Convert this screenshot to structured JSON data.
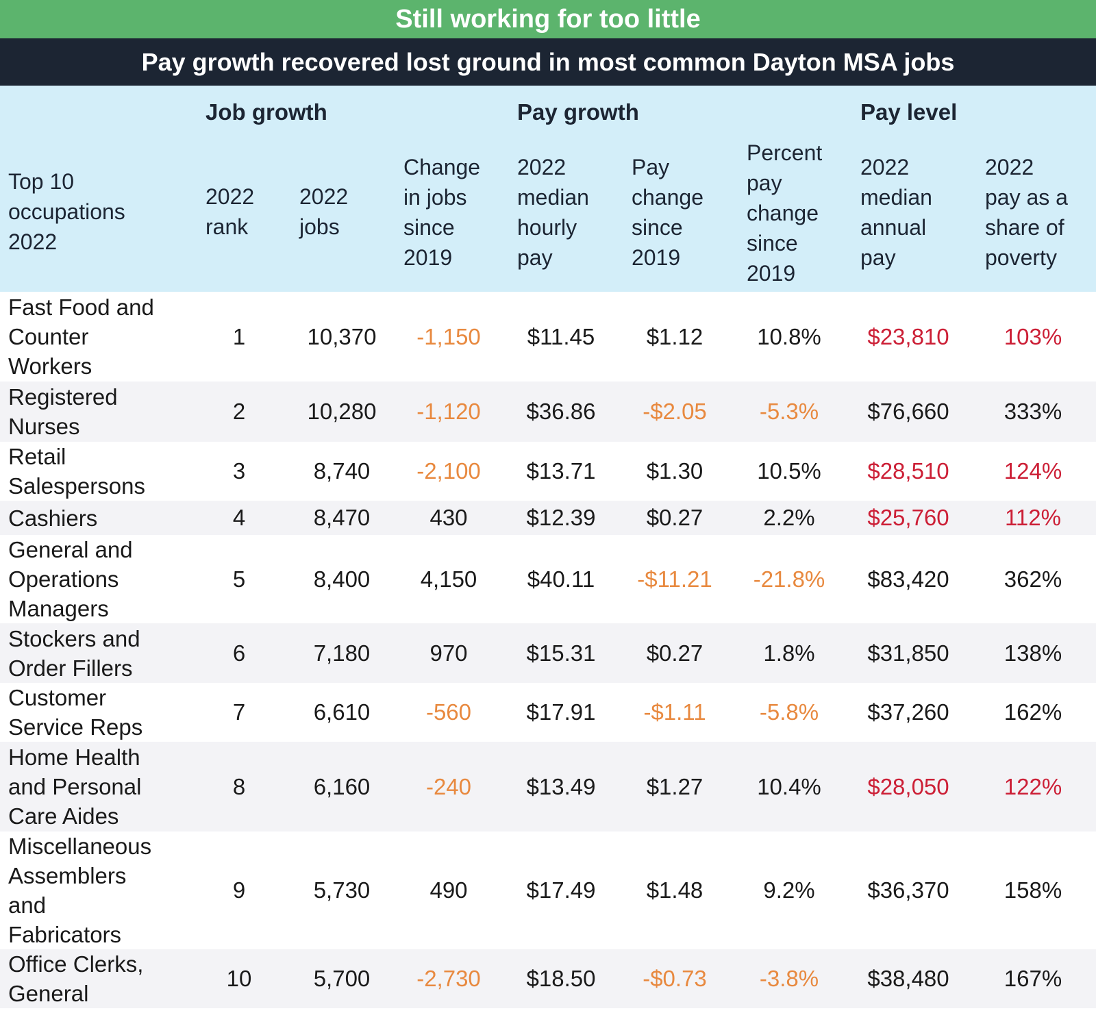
{
  "title": "Still working for too little",
  "subtitle": "Pay growth recovered lost ground in most common Dayton MSA jobs",
  "groups": {
    "job_growth": "Job growth",
    "pay_growth": "Pay growth",
    "pay_level": "Pay level"
  },
  "headers": {
    "occupation": [
      "Top 10",
      "occupations",
      "2022"
    ],
    "rank": [
      "2022",
      "rank"
    ],
    "jobs": [
      "2022",
      "jobs"
    ],
    "change_jobs": [
      "Change",
      "in jobs",
      "since",
      "2019"
    ],
    "hourly": [
      "2022",
      "median",
      "hourly",
      "pay"
    ],
    "pay_change": [
      "Pay",
      "change",
      "since",
      "2019"
    ],
    "pct_change": [
      "Percent",
      "pay",
      "change",
      "since",
      "2019"
    ],
    "annual": [
      "2022",
      "median",
      "annual",
      "pay"
    ],
    "poverty": [
      "2022",
      "pay as a",
      "share of",
      "poverty"
    ]
  },
  "colors": {
    "title_bg": "#5cb46d",
    "subtitle_bg": "#1c2533",
    "header_bg": "#d3eef9",
    "negative": "#e8893f",
    "below_threshold": "#cc1f36"
  },
  "chart_data": {
    "type": "table",
    "title": "Still working for too little",
    "subtitle": "Pay growth recovered lost ground in most common Dayton MSA jobs",
    "columns": [
      "Top 10 occupations 2022",
      "2022 rank",
      "2022 jobs",
      "Change in jobs since 2019",
      "2022 median hourly pay",
      "Pay change since 2019",
      "Percent pay change since 2019",
      "2022 median annual pay",
      "2022 pay as a share of poverty"
    ],
    "rows": [
      {
        "occupation": [
          "Fast Food and",
          "Counter",
          "Workers"
        ],
        "rank": "1",
        "jobs": "10,370",
        "change_jobs": "-1,150",
        "hourly": "$11.45",
        "pay_change": "$1.12",
        "pct_change": "10.8%",
        "annual": "$23,810",
        "poverty": "103%",
        "neg_change_jobs": true,
        "neg_pay": false,
        "low_pay": true
      },
      {
        "occupation": [
          "Registered",
          "Nurses"
        ],
        "rank": "2",
        "jobs": "10,280",
        "change_jobs": "-1,120",
        "hourly": "$36.86",
        "pay_change": "-$2.05",
        "pct_change": "-5.3%",
        "annual": "$76,660",
        "poverty": "333%",
        "neg_change_jobs": true,
        "neg_pay": true,
        "low_pay": false
      },
      {
        "occupation": [
          "Retail",
          "Salespersons"
        ],
        "rank": "3",
        "jobs": "8,740",
        "change_jobs": "-2,100",
        "hourly": "$13.71",
        "pay_change": "$1.30",
        "pct_change": "10.5%",
        "annual": "$28,510",
        "poverty": "124%",
        "neg_change_jobs": true,
        "neg_pay": false,
        "low_pay": true
      },
      {
        "occupation": [
          "Cashiers"
        ],
        "rank": "4",
        "jobs": "8,470",
        "change_jobs": "430",
        "hourly": "$12.39",
        "pay_change": "$0.27",
        "pct_change": "2.2%",
        "annual": "$25,760",
        "poverty": "112%",
        "neg_change_jobs": false,
        "neg_pay": false,
        "low_pay": true
      },
      {
        "occupation": [
          "General and",
          "Operations",
          "Managers"
        ],
        "rank": "5",
        "jobs": "8,400",
        "change_jobs": "4,150",
        "hourly": "$40.11",
        "pay_change": "-$11.21",
        "pct_change": "-21.8%",
        "annual": "$83,420",
        "poverty": "362%",
        "neg_change_jobs": false,
        "neg_pay": true,
        "low_pay": false
      },
      {
        "occupation": [
          "Stockers and",
          "Order Fillers"
        ],
        "rank": "6",
        "jobs": "7,180",
        "change_jobs": "970",
        "hourly": "$15.31",
        "pay_change": "$0.27",
        "pct_change": "1.8%",
        "annual": "$31,850",
        "poverty": "138%",
        "neg_change_jobs": false,
        "neg_pay": false,
        "low_pay": false
      },
      {
        "occupation": [
          "Customer",
          "Service Reps"
        ],
        "rank": "7",
        "jobs": "6,610",
        "change_jobs": "-560",
        "hourly": "$17.91",
        "pay_change": "-$1.11",
        "pct_change": "-5.8%",
        "annual": "$37,260",
        "poverty": "162%",
        "neg_change_jobs": true,
        "neg_pay": true,
        "low_pay": false
      },
      {
        "occupation": [
          "Home Health",
          "and Personal",
          "Care Aides"
        ],
        "rank": "8",
        "jobs": "6,160",
        "change_jobs": "-240",
        "hourly": "$13.49",
        "pay_change": "$1.27",
        "pct_change": "10.4%",
        "annual": "$28,050",
        "poverty": "122%",
        "neg_change_jobs": true,
        "neg_pay": false,
        "low_pay": true
      },
      {
        "occupation": [
          "Miscellaneous",
          "Assemblers",
          "and",
          "Fabricators"
        ],
        "rank": "9",
        "jobs": "5,730",
        "change_jobs": "490",
        "hourly": "$17.49",
        "pay_change": "$1.48",
        "pct_change": "9.2%",
        "annual": "$36,370",
        "poverty": "158%",
        "neg_change_jobs": false,
        "neg_pay": false,
        "low_pay": false
      },
      {
        "occupation": [
          "Office Clerks,",
          "General"
        ],
        "rank": "10",
        "jobs": "5,700",
        "change_jobs": "-2,730",
        "hourly": "$18.50",
        "pay_change": "-$0.73",
        "pct_change": "-3.8%",
        "annual": "$38,480",
        "poverty": "167%",
        "neg_change_jobs": true,
        "neg_pay": true,
        "low_pay": false
      }
    ]
  }
}
